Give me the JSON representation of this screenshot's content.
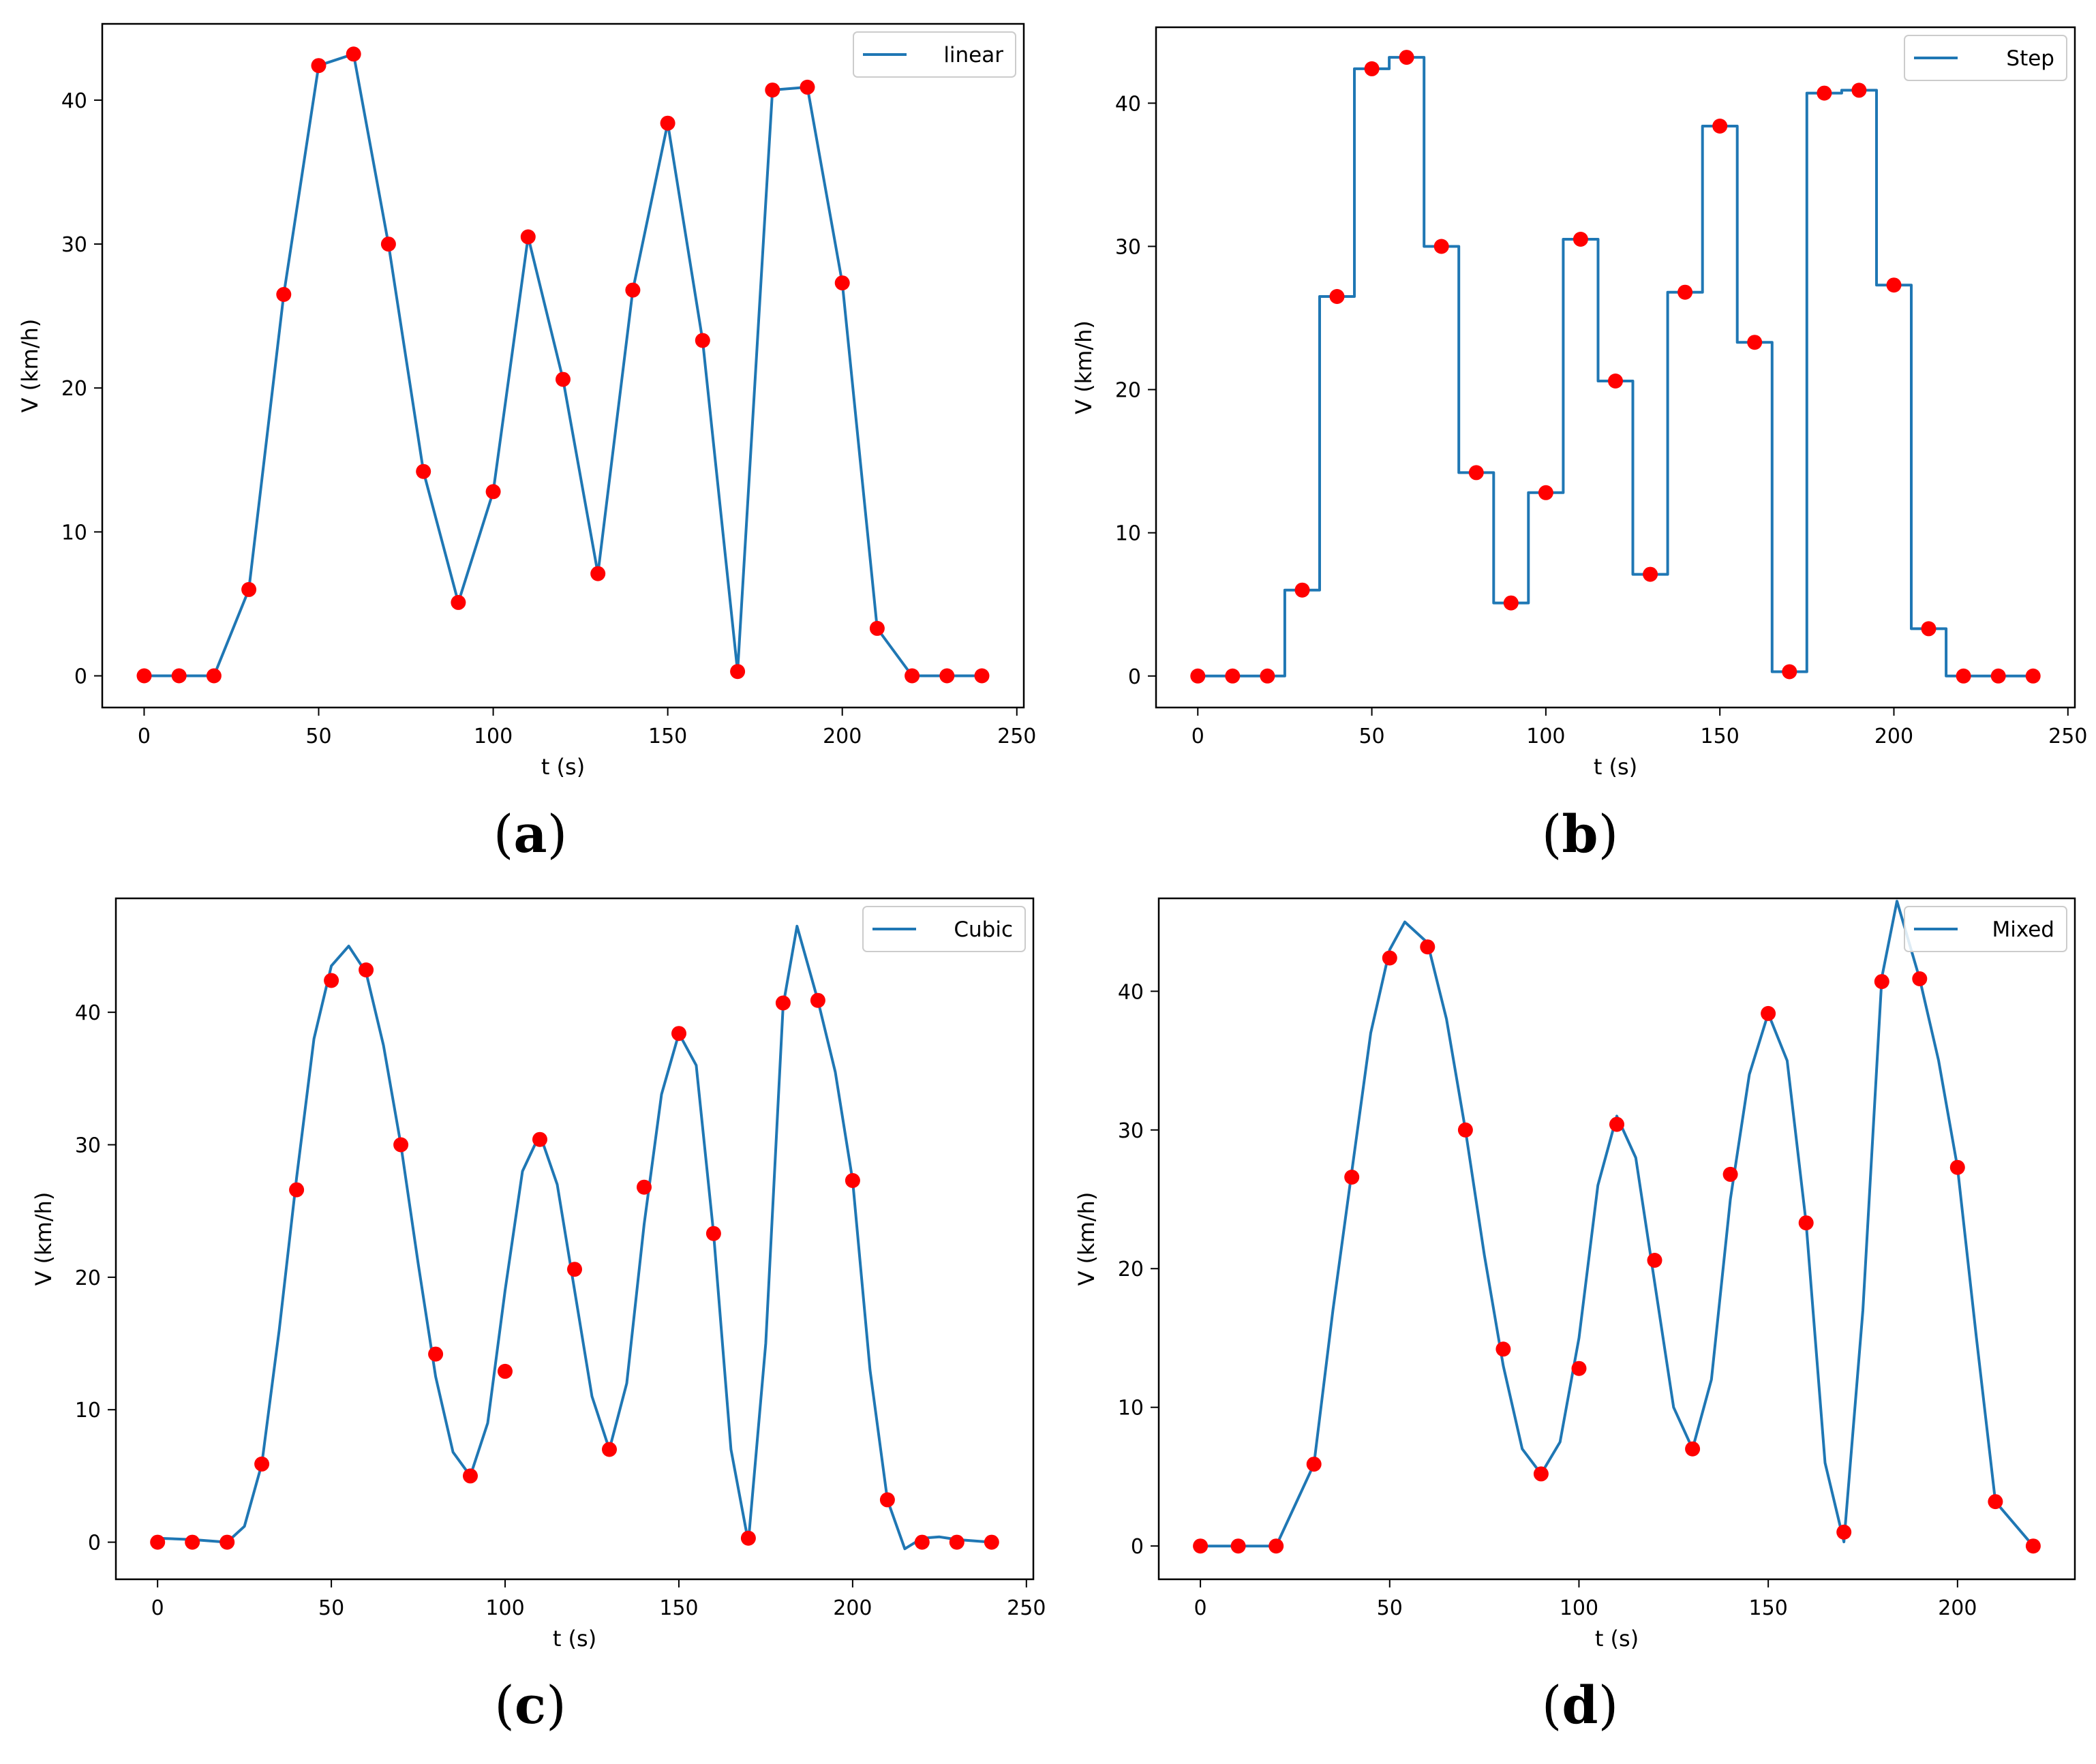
{
  "colors": {
    "line": "#1f77b4",
    "point": "#ff0000",
    "axis": "#000000",
    "legend_border": "#cccccc"
  },
  "chart_data": [
    {
      "type": "line",
      "caption": "(a)",
      "caption_letter": "a",
      "interpolation": "linear",
      "xlabel": "t (s)",
      "ylabel": "V (km/h)",
      "xlim": [
        -12,
        252
      ],
      "ylim": [
        -2.2,
        45.3
      ],
      "xticks": [
        0,
        50,
        100,
        150,
        200,
        250
      ],
      "yticks": [
        0,
        10,
        20,
        30,
        40
      ],
      "legend": {
        "label": "linear",
        "position": "top-right"
      },
      "points": {
        "x": [
          0,
          10,
          20,
          30,
          40,
          50,
          60,
          70,
          80,
          90,
          100,
          110,
          120,
          130,
          140,
          150,
          160,
          170,
          180,
          190,
          200,
          210,
          220,
          230,
          240
        ],
        "y": [
          0,
          0,
          0,
          6,
          26.5,
          42.4,
          43.2,
          30,
          14.2,
          5.1,
          12.8,
          30.5,
          20.6,
          7.1,
          26.8,
          38.4,
          23.3,
          0.3,
          40.7,
          40.9,
          27.3,
          3.3,
          0,
          0,
          0
        ]
      },
      "curve": {
        "x": [
          0,
          10,
          20,
          30,
          40,
          50,
          60,
          70,
          80,
          90,
          100,
          110,
          120,
          130,
          140,
          150,
          160,
          170,
          180,
          190,
          200,
          210,
          220,
          230,
          240
        ],
        "y": [
          0,
          0,
          0,
          6,
          26.5,
          42.4,
          43.2,
          30,
          14.2,
          5.1,
          12.8,
          30.5,
          20.6,
          7.1,
          26.8,
          38.4,
          23.3,
          0.3,
          40.7,
          40.9,
          27.3,
          3.3,
          0,
          0,
          0
        ]
      }
    },
    {
      "type": "line",
      "caption": "(b)",
      "caption_letter": "b",
      "interpolation": "step",
      "xlabel": "t (s)",
      "ylabel": "V (km/h)",
      "xlim": [
        -12,
        252
      ],
      "ylim": [
        -2.2,
        45.3
      ],
      "xticks": [
        0,
        50,
        100,
        150,
        200,
        250
      ],
      "yticks": [
        0,
        10,
        20,
        30,
        40
      ],
      "legend": {
        "label": "Step",
        "position": "top-right"
      },
      "points": {
        "x": [
          0,
          10,
          20,
          30,
          40,
          50,
          60,
          70,
          80,
          90,
          100,
          110,
          120,
          130,
          140,
          150,
          160,
          170,
          180,
          190,
          200,
          210,
          220,
          230,
          240
        ],
        "y": [
          0,
          0,
          0,
          6,
          26.5,
          42.4,
          43.2,
          30,
          14.2,
          5.1,
          12.8,
          30.5,
          20.6,
          7.1,
          26.8,
          38.4,
          23.3,
          0.3,
          40.7,
          40.9,
          27.3,
          3.3,
          0,
          0,
          0
        ]
      },
      "curve": {
        "x": [
          0,
          25,
          25,
          35,
          35,
          45,
          45,
          55,
          55,
          65,
          65,
          75,
          75,
          85,
          85,
          95,
          95,
          105,
          105,
          115,
          115,
          125,
          125,
          135,
          135,
          145,
          145,
          155,
          155,
          165,
          165,
          175,
          175,
          185,
          185,
          195,
          195,
          205,
          205,
          215,
          215,
          240
        ],
        "y": [
          0,
          0,
          6,
          6,
          26.5,
          26.5,
          42.4,
          42.4,
          43.2,
          43.2,
          30,
          30,
          14.2,
          14.2,
          5.1,
          5.1,
          12.8,
          12.8,
          30.5,
          30.5,
          20.6,
          20.6,
          7.1,
          7.1,
          26.8,
          26.8,
          38.4,
          38.4,
          23.3,
          23.3,
          0.3,
          0.3,
          40.7,
          40.7,
          40.9,
          40.9,
          27.3,
          27.3,
          3.3,
          3.3,
          0,
          0
        ]
      }
    },
    {
      "type": "line",
      "caption": "(c)",
      "caption_letter": "c",
      "interpolation": "cubic",
      "xlabel": "t (s)",
      "ylabel": "V (km/h)",
      "xlim": [
        -12,
        252
      ],
      "ylim": [
        -2.8,
        48.6
      ],
      "xticks": [
        0,
        50,
        100,
        150,
        200,
        250
      ],
      "yticks": [
        0,
        10,
        20,
        30,
        40
      ],
      "legend": {
        "label": "Cubic",
        "position": "top-right"
      },
      "points": {
        "x": [
          0,
          10,
          20,
          30,
          40,
          50,
          60,
          70,
          80,
          90,
          100,
          110,
          120,
          130,
          140,
          150,
          160,
          170,
          180,
          190,
          200,
          210,
          220,
          230,
          240
        ],
        "y": [
          0,
          0,
          0,
          5.9,
          26.6,
          42.4,
          43.2,
          30,
          14.2,
          5,
          12.9,
          30.4,
          20.6,
          7,
          26.8,
          38.4,
          23.3,
          0.3,
          40.7,
          40.9,
          27.3,
          3.2,
          0,
          0,
          0
        ]
      },
      "curve": {
        "x": [
          0,
          10,
          20,
          25,
          30,
          35,
          40,
          45,
          50,
          55,
          60,
          65,
          70,
          75,
          80,
          85,
          90,
          95,
          100,
          105,
          110,
          115,
          120,
          125,
          130,
          135,
          140,
          145,
          150,
          155,
          160,
          165,
          170,
          175,
          180,
          184,
          190,
          195,
          200,
          205,
          210,
          215,
          220,
          225,
          230,
          240
        ],
        "y": [
          0.3,
          0.2,
          0,
          1.2,
          5.9,
          16,
          27.5,
          38,
          43.5,
          45,
          43,
          37.5,
          30,
          21,
          12.5,
          6.8,
          5,
          9,
          19,
          28,
          30.8,
          27,
          19,
          11,
          7,
          12,
          24,
          33.8,
          38.4,
          36,
          23.3,
          7,
          0,
          15,
          40.5,
          46.5,
          40.9,
          35.5,
          27.3,
          13,
          3.2,
          -0.5,
          0.3,
          0.4,
          0.2,
          0
        ]
      }
    },
    {
      "type": "line",
      "caption": "(d)",
      "caption_letter": "d",
      "interpolation": "mixed",
      "xlabel": "t (s)",
      "ylabel": "V (km/h)",
      "xlim": [
        -11,
        231
      ],
      "ylim": [
        -2.4,
        46.7
      ],
      "xticks": [
        0,
        50,
        100,
        150,
        200
      ],
      "yticks": [
        0,
        10,
        20,
        30,
        40
      ],
      "legend": {
        "label": "Mixed",
        "position": "top-right"
      },
      "points": {
        "x": [
          0,
          10,
          20,
          30,
          40,
          50,
          60,
          70,
          80,
          90,
          100,
          110,
          120,
          130,
          140,
          150,
          160,
          170,
          180,
          190,
          200,
          210,
          220
        ],
        "y": [
          0,
          0,
          0,
          5.9,
          26.6,
          42.4,
          43.2,
          30,
          14.2,
          5.2,
          12.8,
          30.4,
          20.6,
          7,
          26.8,
          38.4,
          23.3,
          1,
          40.7,
          40.9,
          27.3,
          3.2,
          0
        ]
      },
      "curve": {
        "x": [
          0,
          10,
          20,
          30,
          35,
          40,
          45,
          50,
          54,
          60,
          65,
          70,
          75,
          80,
          85,
          90,
          95,
          100,
          105,
          110,
          115,
          120,
          125,
          130,
          135,
          140,
          145,
          150,
          155,
          160,
          165,
          170,
          175,
          180,
          184,
          190,
          195,
          200,
          205,
          210,
          220
        ],
        "y": [
          0,
          0,
          0,
          5.9,
          17,
          27,
          37,
          43,
          45,
          43.5,
          38,
          30,
          21,
          13,
          7,
          5.2,
          7.5,
          15,
          26,
          31,
          28,
          19,
          10,
          7,
          12,
          25,
          34,
          38.4,
          35,
          23.3,
          6,
          0.3,
          17,
          41,
          46.5,
          40.9,
          35,
          27.3,
          15,
          3.2,
          0
        ]
      }
    }
  ]
}
